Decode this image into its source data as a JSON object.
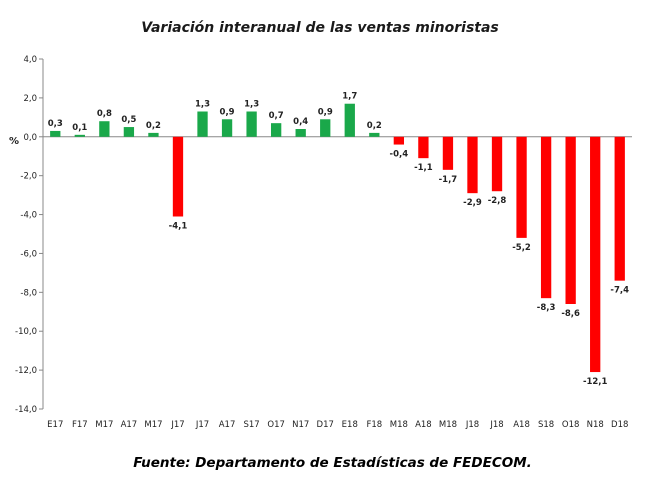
{
  "chart_data": {
    "type": "bar",
    "title": "Variación interanual de las ventas minoristas",
    "ylabel": "%",
    "xlabel": "",
    "ylim": [
      -14,
      4
    ],
    "yticks": [
      "4,0",
      "2,0",
      "0,0",
      "-2,0",
      "-4,0",
      "-6,0",
      "-8,0",
      "-10,0",
      "-12,0",
      "-14,0"
    ],
    "categories": [
      "E17",
      "F17",
      "M17",
      "A17",
      "M17",
      "J17",
      "J17",
      "A17",
      "S17",
      "O17",
      "N17",
      "D17",
      "E18",
      "F18",
      "M18",
      "A18",
      "M18",
      "J18",
      "J18",
      "A18",
      "S18",
      "O18",
      "N18",
      "D18"
    ],
    "values": [
      0.3,
      0.1,
      0.8,
      0.5,
      0.2,
      -4.1,
      1.3,
      0.9,
      1.3,
      0.7,
      0.4,
      0.9,
      1.7,
      0.2,
      -0.4,
      -1.1,
      -1.7,
      -2.9,
      -2.8,
      -5.2,
      -8.3,
      -8.6,
      -12.1,
      -7.4
    ],
    "data_labels": [
      "0,3",
      "0,1",
      "0,8",
      "0,5",
      "0,2",
      "-4,1",
      "1,3",
      "0,9",
      "1,3",
      "0,7",
      "0,4",
      "0,9",
      "1,7",
      "0,2",
      "-0,4",
      "-1,1",
      "-1,7",
      "-2,9",
      "-2,8",
      "-5,2",
      "-8,3",
      "-8,6",
      "-12,1",
      "-7,4"
    ],
    "colors": {
      "positive": "#1aa84a",
      "negative": "#ff0000"
    },
    "grid": false,
    "legend": "none"
  },
  "footer": {
    "source": "Fuente: Departamento de Estadísticas de FEDECOM."
  }
}
